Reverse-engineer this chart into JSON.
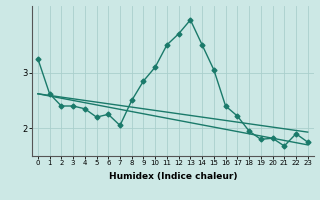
{
  "xlabel": "Humidex (Indice chaleur)",
  "ylabel": "",
  "x": [
    0,
    1,
    2,
    3,
    4,
    5,
    6,
    7,
    8,
    9,
    10,
    11,
    12,
    13,
    14,
    15,
    16,
    17,
    18,
    19,
    20,
    21,
    22,
    23
  ],
  "y_main": [
    3.25,
    2.62,
    2.4,
    2.4,
    2.35,
    2.2,
    2.25,
    2.05,
    2.5,
    2.85,
    3.1,
    3.5,
    3.7,
    3.95,
    3.5,
    3.05,
    2.4,
    2.22,
    1.95,
    1.8,
    1.82,
    1.68,
    1.9,
    1.75
  ],
  "y_trend1": [
    2.62,
    2.58,
    2.54,
    2.5,
    2.46,
    2.42,
    2.38,
    2.34,
    2.3,
    2.26,
    2.22,
    2.18,
    2.14,
    2.1,
    2.06,
    2.02,
    1.98,
    1.94,
    1.9,
    1.86,
    1.82,
    1.78,
    1.74,
    1.7
  ],
  "y_trend2": [
    2.62,
    2.59,
    2.56,
    2.53,
    2.5,
    2.47,
    2.44,
    2.41,
    2.38,
    2.35,
    2.32,
    2.29,
    2.26,
    2.23,
    2.2,
    2.17,
    2.14,
    2.11,
    2.08,
    2.05,
    2.02,
    1.99,
    1.96,
    1.93
  ],
  "line_color": "#1a7a6a",
  "bg_color": "#cce8e5",
  "plot_bg": "#cce8e5",
  "grid_color": "#aacfcc",
  "ylim": [
    1.5,
    4.2
  ],
  "yticks": [
    2,
    3
  ],
  "marker": "D",
  "marker_size": 2.5,
  "line_width": 1.0,
  "tick_fontsize": 5.0,
  "xlabel_fontsize": 6.5
}
